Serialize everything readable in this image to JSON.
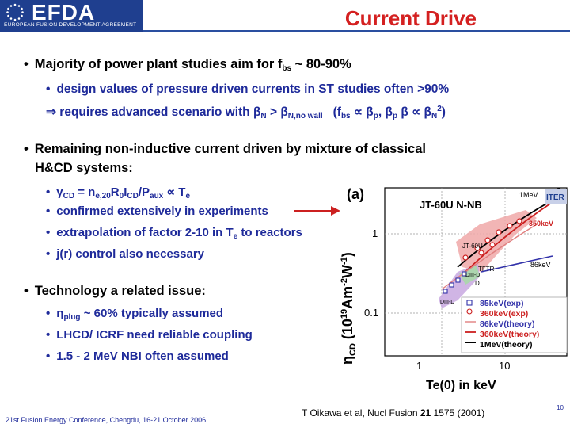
{
  "header": {
    "logo_text": "EFDA",
    "logo_subtitle": "EUROPEAN FUSION DEVELOPMENT AGREEMENT",
    "title": "Current Drive"
  },
  "bullets": {
    "b1_prefix": "Majority of power plant studies aim for f",
    "b1_sub": "bs",
    "b1_suffix": " ~ 80-90%",
    "b1a": "design values of pressure driven currents in ST studies often >90%",
    "b1b_arrow": "⇒",
    "b1b_text": " requires advanced scenario with β",
    "b1b_sub1": "N",
    "b1b_mid": " > β",
    "b1b_sub2": "N,no wall",
    "b1b_paren_a": "(f",
    "b1b_sub3": "bs",
    "b1b_paren_b": " ∝ β",
    "b1b_sub4": "p",
    "b1b_paren_c": ",  β",
    "b1b_sub5": "p",
    "b1b_paren_d": " β ∝ β",
    "b1b_sub6": "N",
    "b1b_sup": "2",
    "b1b_paren_e": ")",
    "b2_line1": "Remaining non-inductive current driven by mixture of classical",
    "b2_line2": "H&CD systems:",
    "b2a_1": "γ",
    "b2a_s1": "CD",
    "b2a_2": " = n",
    "b2a_s2": "e,20",
    "b2a_3": "R",
    "b2a_s3": "0",
    "b2a_4": "I",
    "b2a_s4": "CD",
    "b2a_5": "/P",
    "b2a_s5": "aux",
    "b2a_6": " ∝ T",
    "b2a_s6": "e",
    "b2b": "confirmed extensively in experiments",
    "b2c_1": "extrapolation of factor 2-10 in T",
    "b2c_s": "e",
    "b2c_2": " to reactors",
    "b2d": "j(r) control also necessary",
    "b3": "Technology a related issue:",
    "b3a_1": "η",
    "b3a_s": "plug",
    "b3a_2": " ~ 60% typically assumed",
    "b3b": "LHCD/ ICRF need reliable coupling",
    "b3c": "1.5 - 2 MeV NBI often assumed",
    "bullet_char": "•"
  },
  "figure": {
    "panel_label": "(a)",
    "ylabel": "η",
    "ylabel_sub": "CD",
    "ylabel_rest": " (10",
    "ylabel_exp": "19",
    "ylabel_units": "Am",
    "ylabel_exp2": "-2",
    "ylabel_w": "W",
    "ylabel_exp3": "-1",
    "ylabel_close": ")",
    "xlabel": "Te(0) in keV",
    "ytick_1": "1",
    "ytick_01": "0.1",
    "xtick_1": "1",
    "xtick_10": "10",
    "annot_jt60": "JT-60U N-NB",
    "annot_1mev": "1MeV",
    "annot_iter": "ITER",
    "annot_350": "350keV",
    "annot_jt60u": "JT-60U",
    "annot_tftr": "TFTR",
    "annot_86": "86keV",
    "annot_diiid1": "DIII-D",
    "annot_diiid2": "DIII-D",
    "annot_d2": "D",
    "legend": [
      "85keV(exp)",
      "360keV(exp)",
      "86keV(theory)",
      "360keV(theory)",
      "1MeV(theory)"
    ],
    "colors": {
      "red": "#cc2020",
      "blue": "#3333aa",
      "green": "#228822",
      "pink": "#e8a0a0",
      "purple": "#c8a8e0"
    }
  },
  "footer": {
    "conference": "21st Fusion Energy Conference, Chengdu, 16-21 October 2006",
    "citation_a": "T Oikawa et al, Nucl Fusion ",
    "citation_vol": "21",
    "citation_b": " 1575  (2001)",
    "page": "10"
  }
}
